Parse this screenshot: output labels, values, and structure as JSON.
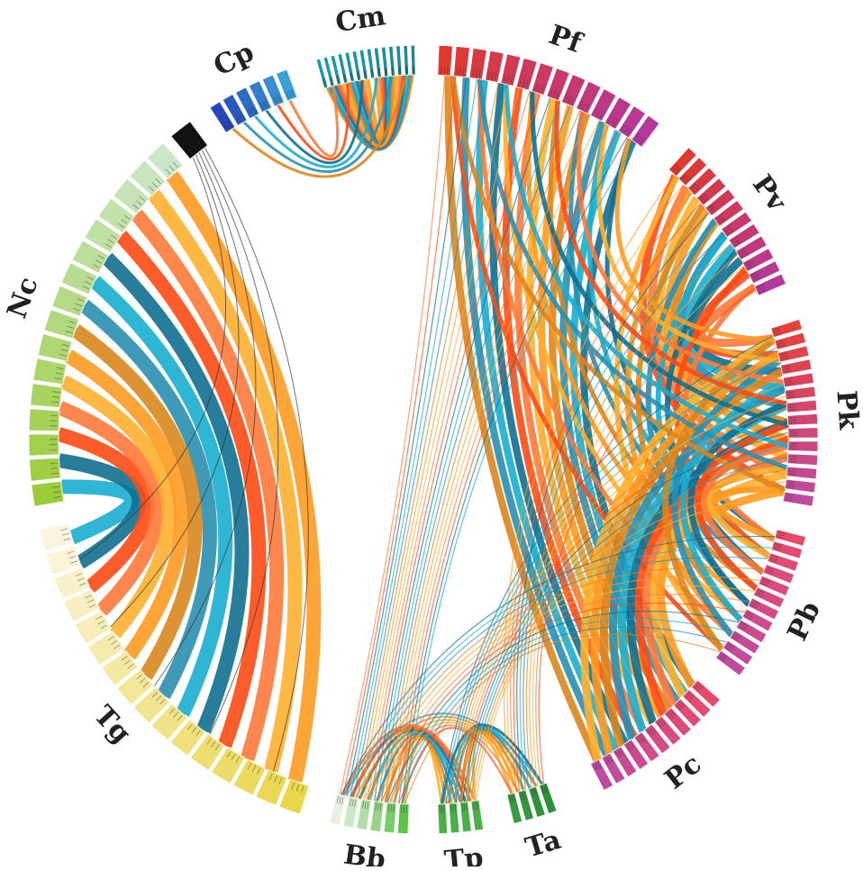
{
  "diagram": {
    "type": "chord",
    "segments": [
      {
        "id": "Pf",
        "label": "Pf",
        "colors": [
          "#e0392f",
          "#b5389c"
        ],
        "units": 14
      },
      {
        "id": "Pv",
        "label": "Pv",
        "colors": [
          "#e0392f",
          "#b5389c"
        ],
        "units": 12
      },
      {
        "id": "Pk",
        "label": "Pk",
        "colors": [
          "#e8403c",
          "#c04aa0"
        ],
        "units": 14
      },
      {
        "id": "Pb",
        "label": "Pb",
        "colors": [
          "#ea4a6a",
          "#c04aa0"
        ],
        "units": 12
      },
      {
        "id": "Pc",
        "label": "Pc",
        "colors": [
          "#ea4a6a",
          "#c04aa0"
        ],
        "units": 11
      },
      {
        "id": "Ta",
        "label": "Ta",
        "colors": [
          "#2f8f3a",
          "#3a9a42"
        ],
        "units": 4
      },
      {
        "id": "Tp",
        "label": "Tp",
        "colors": [
          "#49b045",
          "#49b045"
        ],
        "units": 4
      },
      {
        "id": "Bb",
        "label": "Bb",
        "colors": [
          "#5ec24c",
          "#e8f0e4"
        ],
        "units": 6
      },
      {
        "id": "Tg",
        "label": "Tg",
        "colors": [
          "#e9d64a",
          "#fbf5e0"
        ],
        "units": 16
      },
      {
        "id": "Nc",
        "label": "Nc",
        "colors": [
          "#9ccc3a",
          "#cbe7c9"
        ],
        "units": 16
      },
      {
        "id": "X",
        "label": "",
        "colors": [
          "#111111",
          "#111111"
        ],
        "units": 1
      },
      {
        "id": "Cp",
        "label": "Cp",
        "colors": [
          "#2547b8",
          "#3aa0d8"
        ],
        "units": 6
      },
      {
        "id": "Cm",
        "label": "Cm",
        "colors": [
          "#1a9aa8",
          "#1a8a98"
        ],
        "units": 14
      }
    ],
    "ribbon_palette": [
      "#1aaed0",
      "#0f6f8f",
      "#ff4a14",
      "#ff7a3a",
      "#ffb030",
      "#ff9a20",
      "#d9861e",
      "#2a8fb0"
    ],
    "links": [
      {
        "from": "Nc",
        "to": "Tg",
        "count": 14,
        "width": 16
      },
      {
        "from": "Pf",
        "to": "Pc",
        "count": 12,
        "width": 8
      },
      {
        "from": "Pf",
        "to": "Pb",
        "count": 8,
        "width": 5
      },
      {
        "from": "Pv",
        "to": "Pk",
        "count": 10,
        "width": 9
      },
      {
        "from": "Pv",
        "to": "Pb",
        "count": 8,
        "width": 6
      },
      {
        "from": "Pk",
        "to": "Pc",
        "count": 10,
        "width": 9
      },
      {
        "from": "Pk",
        "to": "Pb",
        "count": 8,
        "width": 7
      },
      {
        "from": "Pf",
        "to": "Pk",
        "count": 8,
        "width": 5
      },
      {
        "from": "Cm",
        "to": "Cm",
        "count": 16,
        "width": 3
      },
      {
        "from": "Cp",
        "to": "Cm",
        "count": 6,
        "width": 3
      },
      {
        "from": "Bb",
        "to": "Tp",
        "count": 8,
        "width": 3
      },
      {
        "from": "Tp",
        "to": "Ta",
        "count": 6,
        "width": 3
      },
      {
        "from": "Bb",
        "to": "Ta",
        "count": 6,
        "width": 2
      },
      {
        "from": "Bb",
        "to": "Pf",
        "count": 20,
        "width": 1.2
      },
      {
        "from": "Tp",
        "to": "Pk",
        "count": 14,
        "width": 1.2
      },
      {
        "from": "Ta",
        "to": "Pv",
        "count": 12,
        "width": 1.2
      },
      {
        "from": "Bb",
        "to": "Pb",
        "count": 12,
        "width": 1.2
      },
      {
        "from": "X",
        "to": "Tg",
        "count": 5,
        "width": 1
      }
    ]
  }
}
